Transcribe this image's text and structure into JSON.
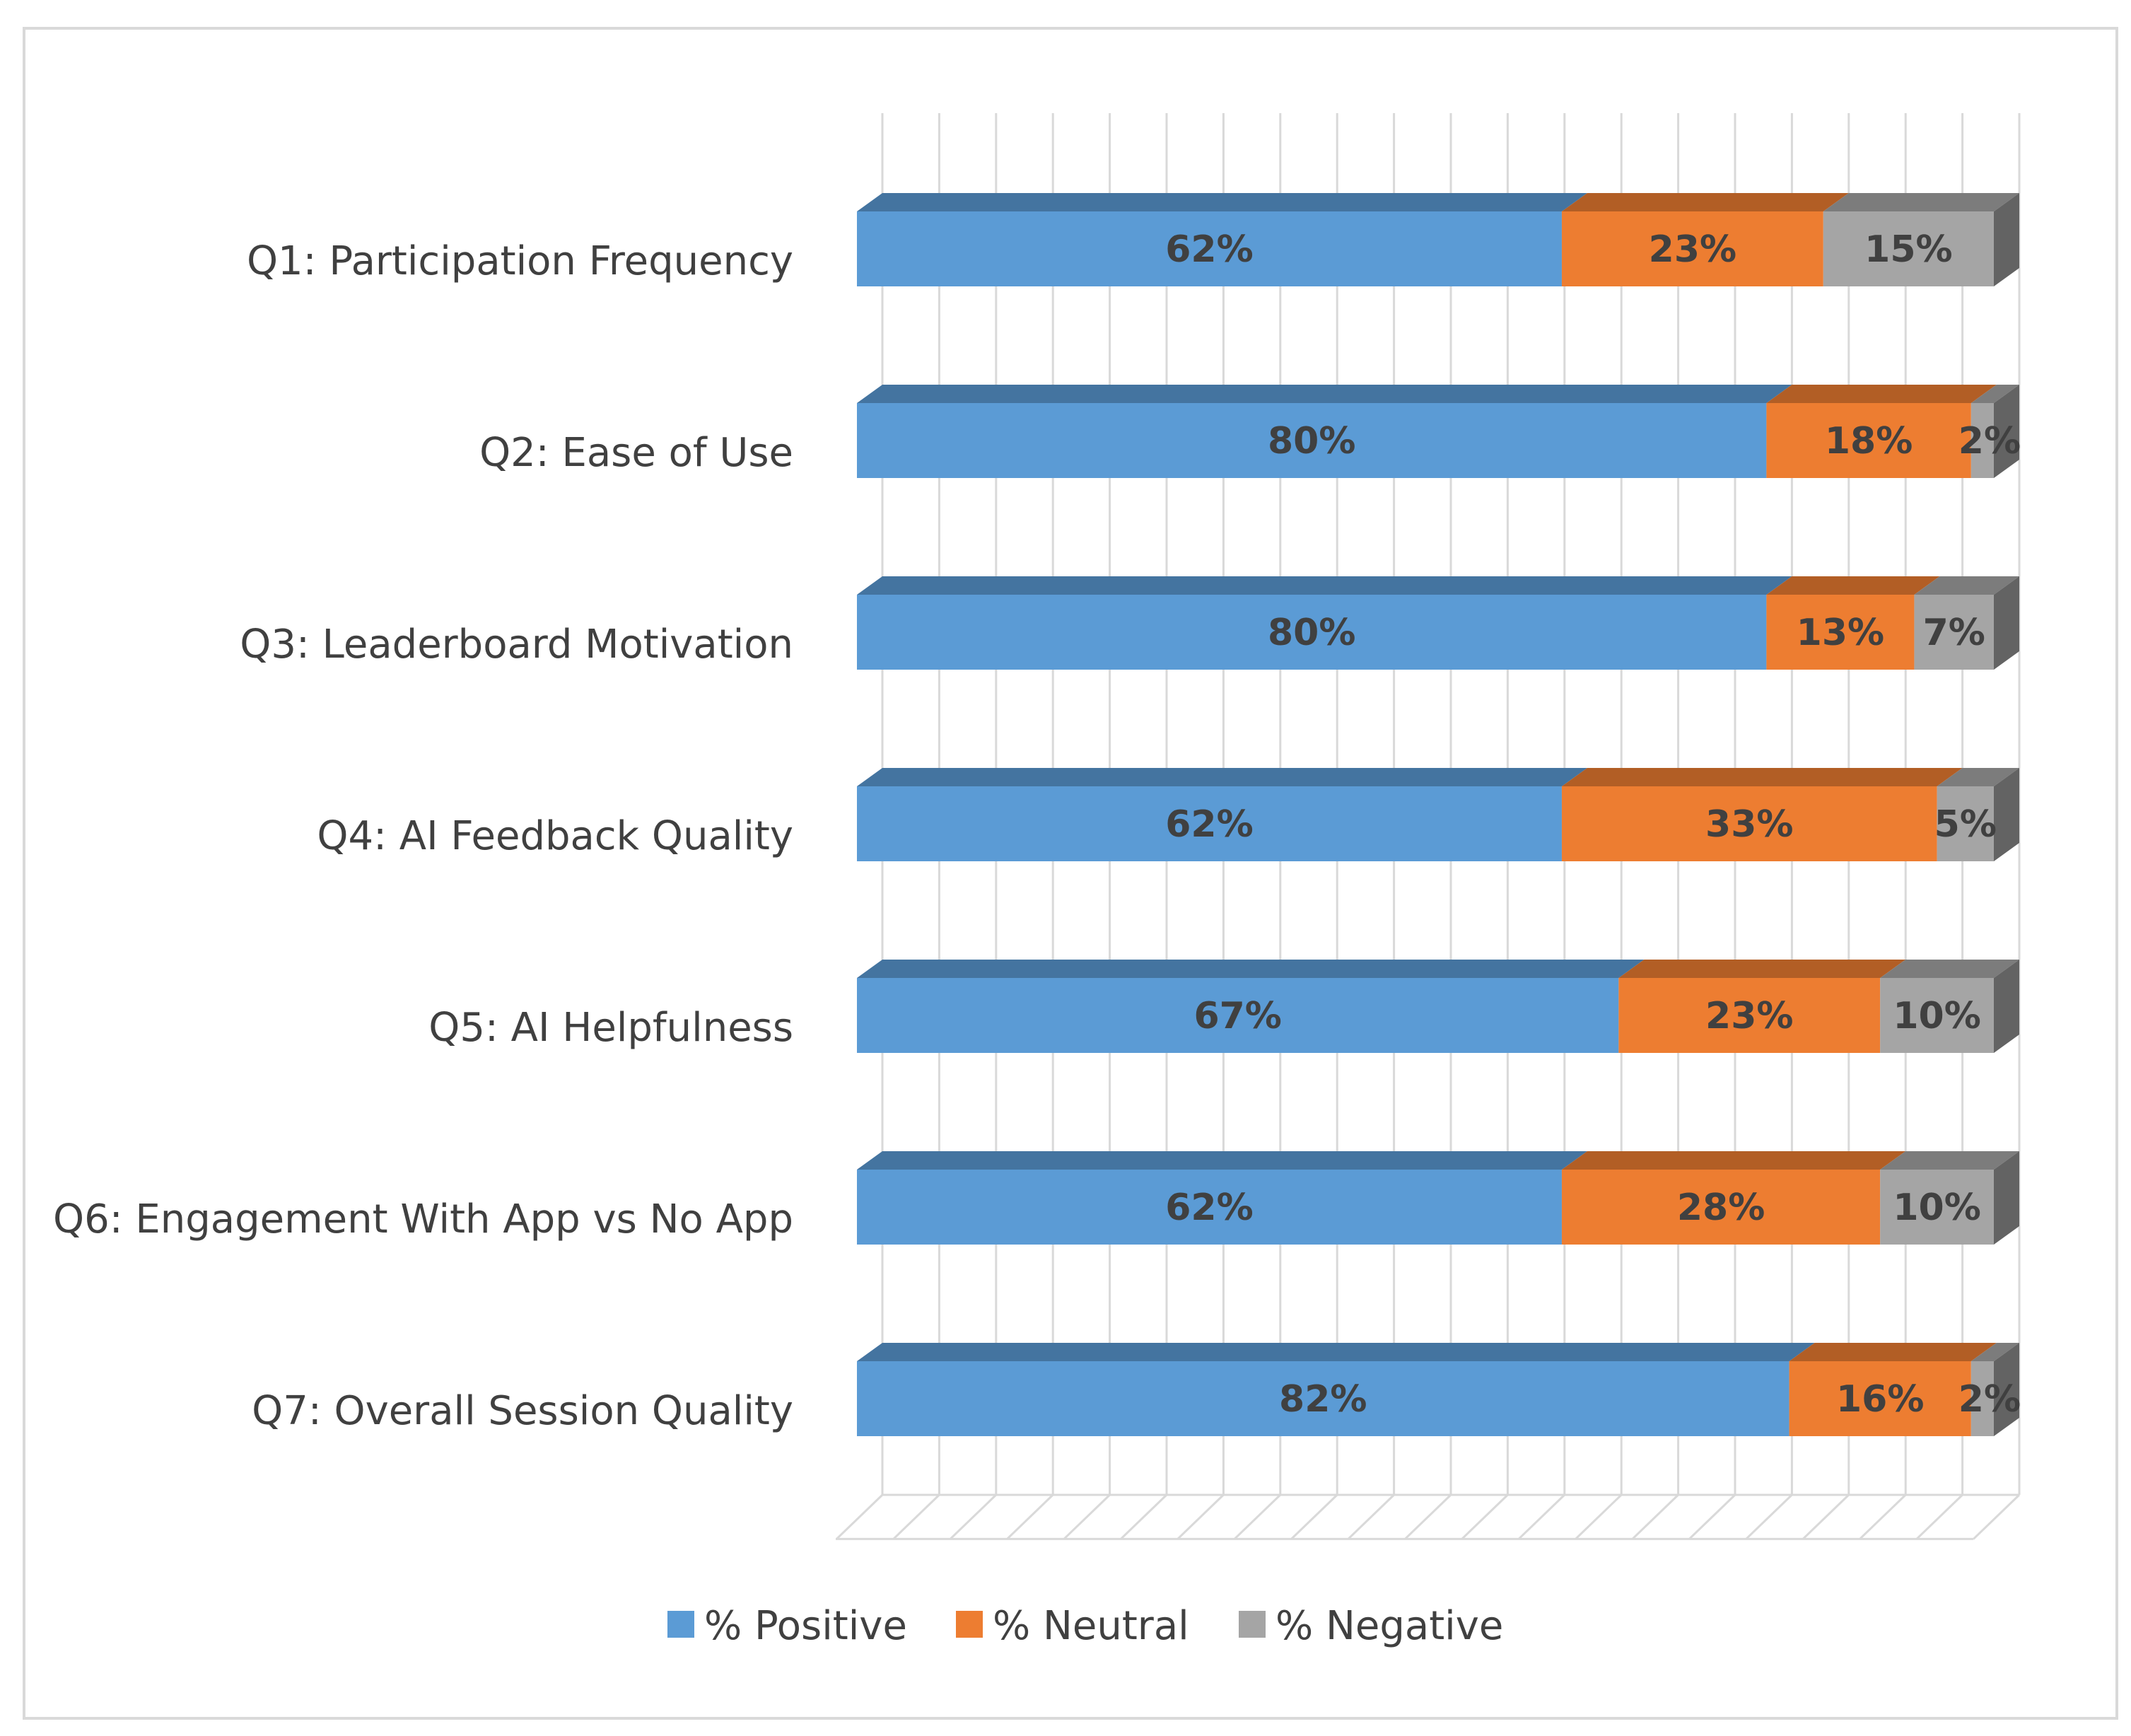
{
  "chart_data": {
    "type": "bar",
    "orientation": "horizontal",
    "stacked": "100%",
    "three_d": true,
    "title": "",
    "xlabel": "",
    "ylabel": "",
    "xlim": [
      0,
      100
    ],
    "grid": true,
    "legend_position": "bottom",
    "categories": [
      "Q1: Participation Frequency",
      "Q2: Ease of Use",
      "Q3: Leaderboard Motivation",
      "Q4: AI Feedback Quality",
      "Q5: AI Helpfulness",
      "Q6: Engagement With App vs No App",
      "Q7: Overall Session Quality"
    ],
    "series": [
      {
        "name": "% Positive",
        "color": "#5B9BD5",
        "values": [
          62,
          80,
          80,
          62,
          67,
          62,
          82
        ],
        "labels": [
          "62%",
          "80%",
          "80%",
          "62%",
          "67%",
          "62%",
          "82%"
        ]
      },
      {
        "name": "% Neutral",
        "color": "#ED7D31",
        "values": [
          23,
          18,
          13,
          33,
          23,
          28,
          16
        ],
        "labels": [
          "23%",
          "18%",
          "13%",
          "33%",
          "23%",
          "28%",
          "16%"
        ]
      },
      {
        "name": "% Negative",
        "color": "#A5A5A5",
        "values": [
          15,
          2,
          7,
          5,
          10,
          10,
          2
        ],
        "labels": [
          "15%",
          "2%",
          "7%",
          "5%",
          "10%",
          "10%",
          "2%"
        ]
      }
    ]
  }
}
